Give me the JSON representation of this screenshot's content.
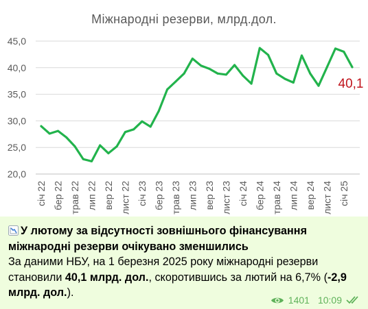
{
  "message": {
    "title_emoji": "chart-decreasing-icon",
    "headline": "У лютому за відсутності зовнішнього фінансування міжнародні резерви очікувано зменшились",
    "body_prefix": "За даними НБУ, на 1 березня 2025 року міжнародні резерви становили ",
    "body_bold1": "40,1 млрд. дол.",
    "body_mid": ", скоротившись за лютий на 6,7% (",
    "body_bold2": "-2,9 млрд. дол.",
    "body_suffix": ").",
    "views": "1401",
    "time": "10:09",
    "status_icon": "double-check-icon"
  },
  "colors": {
    "line": "#22b34c",
    "callout": "#c0141d",
    "meta": "#5fb25a"
  },
  "chart_data": {
    "type": "line",
    "title": "Міжнародні резерви, млрд.дол.",
    "ylim": [
      20,
      45
    ],
    "yticks": [
      "20,0",
      "25,0",
      "30,0",
      "35,0",
      "40,0",
      "45,0"
    ],
    "ytick_values": [
      20,
      25,
      30,
      35,
      40,
      45
    ],
    "grid": true,
    "xtick_labels": [
      "січ 22",
      "бер 22",
      "трав 22",
      "лип 22",
      "вер 22",
      "лист 22",
      "січ 23",
      "бер 23",
      "трав 23",
      "лип 23",
      "вер 23",
      "лист 23",
      "січ 24",
      "бер 24",
      "трав 24",
      "лип 24",
      "вер 24",
      "лист 24",
      "січ 25"
    ],
    "series": [
      {
        "values": [
          29.0,
          27.6,
          28.1,
          26.9,
          25.2,
          22.8,
          22.4,
          25.4,
          23.9,
          25.2,
          27.9,
          28.4,
          29.9,
          28.9,
          31.9,
          35.9,
          37.4,
          38.9,
          41.7,
          40.4,
          39.8,
          38.9,
          38.7,
          40.5,
          38.5,
          37.0,
          43.7,
          42.4,
          38.9,
          37.9,
          37.2,
          42.3,
          38.9,
          36.6,
          40.1,
          43.6,
          43.0,
          40.1
        ]
      }
    ],
    "callout": "40,1"
  }
}
